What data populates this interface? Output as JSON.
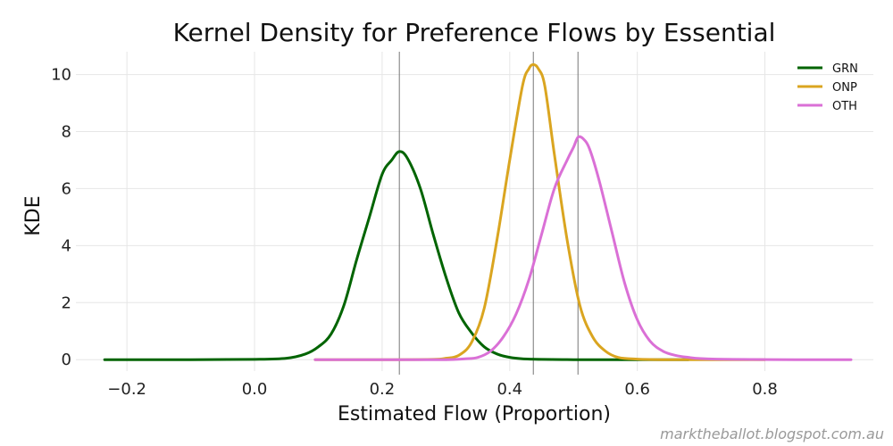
{
  "chart_data": {
    "type": "line",
    "title": "Kernel Density for Preference Flows by Essential",
    "xlabel": "Estimated Flow (Proportion)",
    "ylabel": "KDE",
    "xlim": [
      -0.28,
      0.97
    ],
    "ylim": [
      -0.4,
      10.8
    ],
    "x_ticks": [
      -0.2,
      0.0,
      0.2,
      0.4,
      0.6,
      0.8
    ],
    "x_tick_labels": [
      "−0.2",
      "0.0",
      "0.2",
      "0.4",
      "0.6",
      "0.8"
    ],
    "y_ticks": [
      0,
      2,
      4,
      6,
      8,
      10
    ],
    "y_tick_labels": [
      "0",
      "2",
      "4",
      "6",
      "8",
      "10"
    ],
    "grid": true,
    "legend_position": "top-right",
    "vertical_lines": [
      0.227,
      0.437,
      0.507
    ],
    "series": [
      {
        "name": "GRN",
        "color": "#006400",
        "x": [
          -0.235,
          -0.1,
          0.0,
          0.05,
          0.08,
          0.1,
          0.12,
          0.14,
          0.16,
          0.18,
          0.2,
          0.215,
          0.227,
          0.24,
          0.26,
          0.28,
          0.3,
          0.32,
          0.34,
          0.36,
          0.38,
          0.4,
          0.42,
          0.45,
          0.5,
          0.55,
          0.6,
          0.68
        ],
        "y": [
          0.0,
          0.0,
          0.01,
          0.05,
          0.2,
          0.45,
          0.9,
          1.9,
          3.5,
          5.0,
          6.5,
          7.0,
          7.3,
          7.05,
          6.0,
          4.4,
          2.9,
          1.65,
          0.95,
          0.45,
          0.2,
          0.08,
          0.03,
          0.01,
          0.0,
          0.0,
          0.0,
          0.0
        ]
      },
      {
        "name": "ONP",
        "color": "#DAA520",
        "x": [
          0.095,
          0.2,
          0.28,
          0.3,
          0.32,
          0.34,
          0.36,
          0.38,
          0.4,
          0.42,
          0.43,
          0.437,
          0.445,
          0.455,
          0.47,
          0.49,
          0.51,
          0.53,
          0.55,
          0.57,
          0.6,
          0.65,
          0.72,
          0.8
        ],
        "y": [
          0.0,
          0.0,
          0.01,
          0.05,
          0.15,
          0.6,
          1.8,
          4.2,
          7.0,
          9.6,
          10.2,
          10.35,
          10.2,
          9.6,
          7.2,
          4.2,
          1.9,
          0.8,
          0.3,
          0.08,
          0.02,
          0.0,
          0.0,
          0.0
        ]
      },
      {
        "name": "OTH",
        "color": "#DA70D6",
        "x": [
          0.095,
          0.2,
          0.3,
          0.33,
          0.35,
          0.37,
          0.39,
          0.41,
          0.43,
          0.45,
          0.47,
          0.49,
          0.5,
          0.507,
          0.515,
          0.525,
          0.54,
          0.56,
          0.58,
          0.6,
          0.62,
          0.64,
          0.66,
          0.68,
          0.7,
          0.75,
          0.85,
          0.935
        ],
        "y": [
          0.0,
          0.0,
          0.0,
          0.03,
          0.08,
          0.3,
          0.8,
          1.6,
          2.8,
          4.4,
          6.0,
          7.0,
          7.45,
          7.8,
          7.75,
          7.4,
          6.3,
          4.5,
          2.7,
          1.4,
          0.65,
          0.3,
          0.15,
          0.08,
          0.04,
          0.01,
          0.0,
          0.0
        ]
      }
    ]
  },
  "watermark": "marktheballot.blogspot.com.au"
}
